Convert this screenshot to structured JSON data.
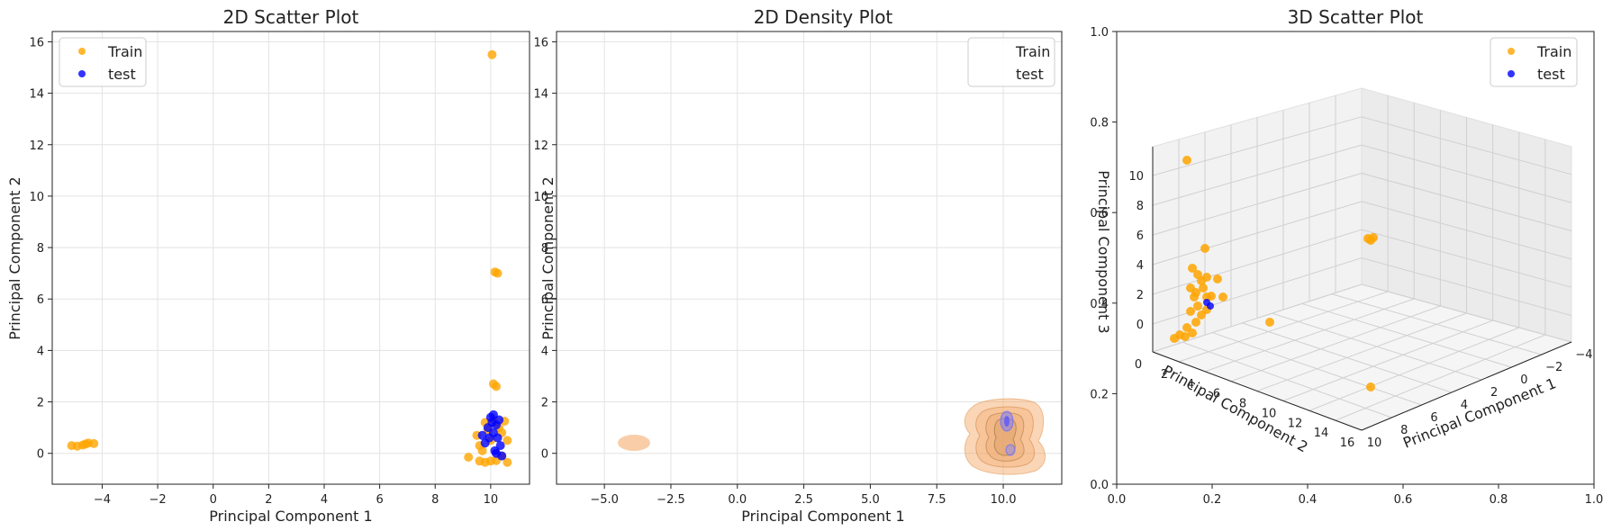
{
  "chart_data": [
    {
      "type": "scatter",
      "title": "2D Scatter Plot",
      "xlabel": "Principal Component 1",
      "ylabel": "Principal Component 2",
      "xlim": [
        -5.8,
        11.4
      ],
      "ylim": [
        -1.2,
        16.4
      ],
      "xticks": [
        -4,
        -2,
        0,
        2,
        4,
        6,
        8,
        10
      ],
      "xtick_labels": [
        "−4",
        "−2",
        "0",
        "2",
        "4",
        "6",
        "8",
        "10"
      ],
      "yticks": [
        0,
        2,
        4,
        6,
        8,
        10,
        12,
        14,
        16
      ],
      "ytick_labels": [
        "0",
        "2",
        "4",
        "6",
        "8",
        "10",
        "12",
        "14",
        "16"
      ],
      "grid": true,
      "legend": "top-left",
      "series": [
        {
          "name": "Train",
          "color": "#FFA500",
          "points": [
            [
              10.05,
              15.5
            ],
            [
              10.15,
              7.05
            ],
            [
              10.25,
              7.0
            ],
            [
              10.1,
              2.7
            ],
            [
              10.2,
              2.6
            ],
            [
              -5.1,
              0.3
            ],
            [
              -4.9,
              0.28
            ],
            [
              -4.7,
              0.32
            ],
            [
              -4.5,
              0.4
            ],
            [
              -4.3,
              0.38
            ],
            [
              -4.6,
              0.36
            ],
            [
              9.2,
              -0.15
            ],
            [
              9.5,
              0.7
            ],
            [
              9.6,
              -0.3
            ],
            [
              9.8,
              -0.35
            ],
            [
              10.0,
              -0.3
            ],
            [
              10.2,
              -0.28
            ],
            [
              10.4,
              -0.1
            ],
            [
              10.6,
              -0.35
            ],
            [
              9.6,
              0.3
            ],
            [
              9.9,
              0.9
            ],
            [
              10.1,
              1.3
            ],
            [
              10.3,
              1.0
            ],
            [
              10.5,
              1.25
            ],
            [
              10.6,
              0.5
            ],
            [
              9.7,
              0.1
            ],
            [
              10.0,
              0.5
            ],
            [
              10.4,
              0.8
            ],
            [
              9.8,
              1.2
            ]
          ]
        },
        {
          "name": "test",
          "color": "#0000FF",
          "points": [
            [
              9.7,
              0.7
            ],
            [
              9.8,
              0.4
            ],
            [
              9.9,
              1.0
            ],
            [
              10.0,
              1.4
            ],
            [
              10.05,
              1.2
            ],
            [
              10.1,
              0.8
            ],
            [
              10.15,
              0.1
            ],
            [
              10.2,
              0.0
            ],
            [
              10.25,
              0.6
            ],
            [
              10.3,
              1.3
            ],
            [
              10.35,
              0.3
            ],
            [
              10.4,
              -0.1
            ],
            [
              10.1,
              1.5
            ],
            [
              10.2,
              1.1
            ],
            [
              9.95,
              0.6
            ]
          ]
        }
      ]
    },
    {
      "type": "area",
      "title": "2D Density Plot",
      "xlabel": "Principal Component 1",
      "ylabel": "Principal Component 2",
      "xlim": [
        -6.8,
        12.2
      ],
      "ylim": [
        -1.2,
        16.4
      ],
      "xticks": [
        -5.0,
        -2.5,
        0.0,
        2.5,
        5.0,
        7.5,
        10.0
      ],
      "xtick_labels": [
        "−5.0",
        "−2.5",
        "0.0",
        "2.5",
        "5.0",
        "7.5",
        "10.0"
      ],
      "yticks": [
        0,
        2,
        4,
        6,
        8,
        10,
        12,
        14,
        16
      ],
      "ytick_labels": [
        "0",
        "2",
        "4",
        "6",
        "8",
        "10",
        "12",
        "14",
        "16"
      ],
      "grid": true,
      "legend": "top-right",
      "series": [
        {
          "name": "Train",
          "color": "#F4A460",
          "density_centers": [
            [
              -4.6,
              0.35
            ],
            [
              10.0,
              0.8
            ]
          ]
        },
        {
          "name": "test",
          "color": "#6A6AFF",
          "density_centers": [
            [
              10.1,
              1.1
            ],
            [
              10.2,
              0.0
            ]
          ]
        }
      ]
    },
    {
      "type": "scatter",
      "title": "3D Scatter Plot",
      "xlabel": "Principal Component 1",
      "ylabel": "Principal Component 2",
      "zlabel": "Principal Component 3",
      "outer_axes": {
        "xticks": [
          "0.0",
          "0.2",
          "0.4",
          "0.6",
          "0.8",
          "1.0"
        ],
        "yticks": [
          "0.0",
          "0.2",
          "0.4",
          "0.6",
          "0.8",
          "1.0"
        ]
      },
      "x3_ticks": [
        "−4",
        "−2",
        "0",
        "2",
        "4",
        "6",
        "8",
        "10"
      ],
      "y3_ticks": [
        "0",
        "2",
        "4",
        "6",
        "8",
        "10",
        "12",
        "14",
        "16"
      ],
      "z3_ticks": [
        "0",
        "2",
        "4",
        "6",
        "8",
        "10"
      ],
      "legend": "top-right",
      "series": [
        {
          "name": "Train",
          "color": "#FFA500"
        },
        {
          "name": "test",
          "color": "#0000FF"
        }
      ]
    }
  ]
}
